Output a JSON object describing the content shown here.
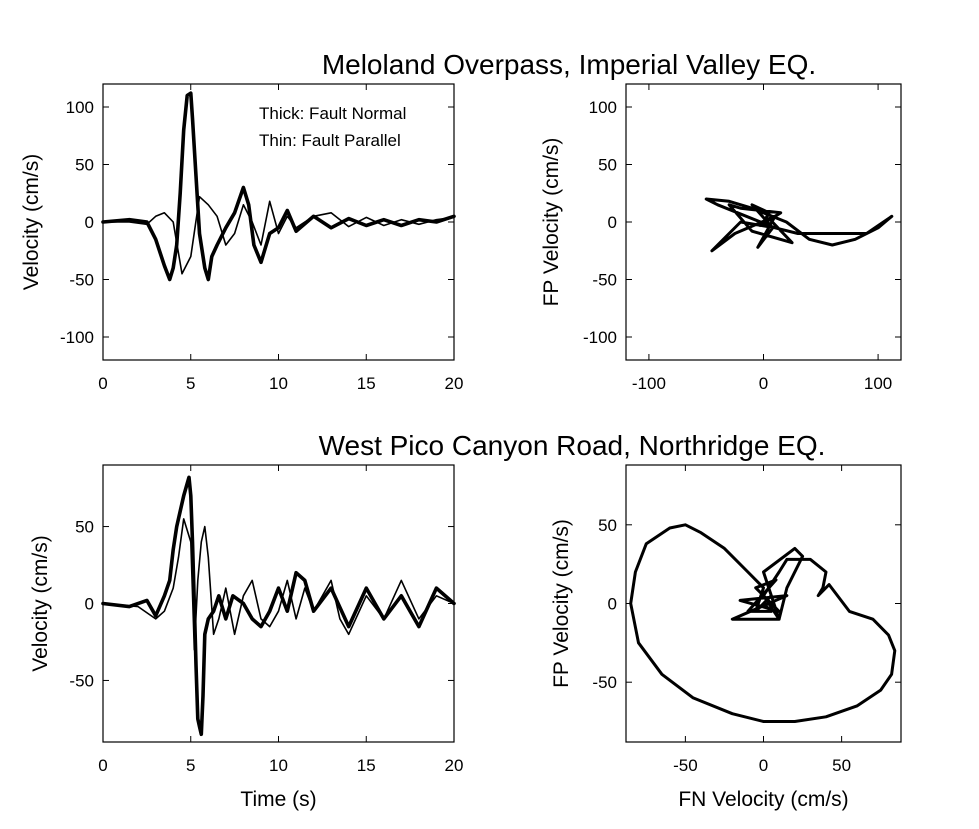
{
  "titles": {
    "top": "Meloland Overpass, Imperial Valley EQ.",
    "bottom": "West Pico Canyon Road, Northridge EQ."
  },
  "chart_data": [
    {
      "type": "line",
      "xlabel": "",
      "ylabel": "Velocity (cm/s)",
      "xlim": [
        0,
        20
      ],
      "ylim": [
        -120,
        120
      ],
      "xticks": [
        0,
        5,
        10,
        15,
        20
      ],
      "yticks": [
        -100,
        -50,
        0,
        50,
        100
      ],
      "legend": [
        "Thick: Fault Normal",
        "Thin: Fault Parallel"
      ],
      "series": [
        {
          "name": "Fault Normal",
          "x": [
            0,
            1.5,
            2.5,
            3,
            3.5,
            3.8,
            4,
            4.2,
            4.4,
            4.6,
            4.8,
            5,
            5.1,
            5.3,
            5.5,
            5.8,
            6,
            6.2,
            6.5,
            7,
            7.5,
            8,
            8.3,
            8.6,
            9,
            9.5,
            10,
            10.5,
            11,
            12,
            13,
            14,
            15,
            16,
            17,
            18,
            19,
            20
          ],
          "y": [
            0,
            2,
            0,
            -15,
            -38,
            -50,
            -40,
            -20,
            25,
            80,
            110,
            112,
            90,
            40,
            -10,
            -40,
            -50,
            -30,
            -20,
            -5,
            8,
            30,
            15,
            -20,
            -35,
            -10,
            -5,
            10,
            -8,
            5,
            -5,
            3,
            -3,
            2,
            -3,
            2,
            0,
            5
          ]
        },
        {
          "name": "Fault Parallel",
          "x": [
            0,
            1.5,
            2.5,
            3,
            3.5,
            4,
            4.5,
            5,
            5.5,
            6,
            6.5,
            7,
            7.5,
            8,
            8.5,
            9,
            9.5,
            10,
            10.5,
            11,
            12,
            13,
            14,
            15,
            16,
            17,
            18,
            19,
            20
          ],
          "y": [
            0,
            0,
            -2,
            5,
            8,
            0,
            -45,
            -30,
            22,
            15,
            5,
            -20,
            -10,
            15,
            0,
            -20,
            18,
            -10,
            5,
            -5,
            5,
            8,
            -4,
            4,
            -3,
            2,
            -2,
            2,
            4
          ]
        }
      ]
    },
    {
      "type": "line",
      "xlabel": "",
      "ylabel": "FP Velocity (cm/s)",
      "xlim": [
        -120,
        120
      ],
      "ylim": [
        -120,
        120
      ],
      "xticks": [
        -100,
        0,
        100
      ],
      "yticks": [
        -100,
        -50,
        0,
        50,
        100
      ],
      "series": [
        {
          "name": "",
          "x": [
            0,
            5,
            -10,
            8,
            -5,
            10,
            -25,
            -45,
            -20,
            10,
            -40,
            -50,
            -30,
            -10,
            20,
            40,
            60,
            80,
            100,
            112,
            90,
            60,
            30,
            10,
            -5,
            8,
            -3,
            15,
            -20,
            -30,
            -10,
            25,
            5,
            0
          ],
          "y": [
            0,
            8,
            15,
            -5,
            -22,
            5,
            -10,
            -25,
            0,
            -5,
            15,
            20,
            18,
            12,
            0,
            -15,
            -20,
            -15,
            -5,
            5,
            -10,
            -10,
            -10,
            -5,
            -2,
            4,
            -3,
            8,
            12,
            15,
            -8,
            -18,
            3,
            0
          ]
        }
      ]
    },
    {
      "type": "line",
      "xlabel": "Time (s)",
      "ylabel": "Velocity (cm/s)",
      "xlim": [
        0,
        20
      ],
      "ylim": [
        -90,
        90
      ],
      "xticks": [
        0,
        5,
        10,
        15,
        20
      ],
      "yticks": [
        -50,
        0,
        50
      ],
      "series": [
        {
          "name": "Fault Normal",
          "x": [
            0,
            1.5,
            2.5,
            3,
            3.5,
            3.8,
            4,
            4.2,
            4.4,
            4.6,
            4.8,
            4.9,
            5,
            5.1,
            5.2,
            5.3,
            5.4,
            5.5,
            5.6,
            5.7,
            5.8,
            6,
            6.3,
            6.6,
            7,
            7.4,
            8,
            8.5,
            9,
            9.5,
            10,
            10.5,
            11,
            11.5,
            12,
            13,
            14,
            15,
            16,
            17,
            18,
            19,
            20
          ],
          "y": [
            0,
            -2,
            2,
            -8,
            5,
            15,
            35,
            50,
            60,
            70,
            78,
            82,
            70,
            40,
            0,
            -40,
            -75,
            -80,
            -85,
            -60,
            -20,
            -10,
            -5,
            5,
            -10,
            5,
            0,
            -10,
            -15,
            -5,
            10,
            -5,
            20,
            15,
            -5,
            10,
            -15,
            10,
            -10,
            5,
            -15,
            10,
            0
          ]
        },
        {
          "name": "Fault Parallel",
          "x": [
            0,
            2,
            3,
            3.5,
            4,
            4.3,
            4.6,
            5,
            5.2,
            5.4,
            5.6,
            5.8,
            6,
            6.3,
            6.6,
            7,
            7.5,
            8,
            8.5,
            9,
            9.5,
            10,
            10.5,
            11,
            11.5,
            12,
            12.5,
            13,
            13.5,
            14,
            15,
            16,
            17,
            18,
            19,
            20
          ],
          "y": [
            0,
            -2,
            -10,
            -5,
            10,
            30,
            55,
            40,
            -30,
            15,
            40,
            50,
            30,
            -20,
            -10,
            10,
            -20,
            5,
            15,
            -10,
            -15,
            -5,
            15,
            -10,
            10,
            -5,
            5,
            15,
            -10,
            -20,
            5,
            -10,
            15,
            -10,
            5,
            0
          ]
        }
      ]
    },
    {
      "type": "line",
      "xlabel": "FN Velocity (cm/s)",
      "ylabel": "FP Velocity (cm/s)",
      "xlim": [
        -88,
        88
      ],
      "ylim": [
        -88,
        88
      ],
      "xticks": [
        -50,
        0,
        50
      ],
      "yticks": [
        -50,
        0,
        50
      ],
      "series": [
        {
          "name": "",
          "x": [
            0,
            5,
            -10,
            8,
            -5,
            10,
            -15,
            15,
            -20,
            10,
            0,
            20,
            25,
            15,
            10,
            0,
            10,
            15,
            30,
            40,
            38,
            35,
            42,
            55,
            70,
            80,
            84,
            82,
            75,
            60,
            40,
            20,
            0,
            -20,
            -45,
            -65,
            -80,
            -85,
            -82,
            -75,
            -60,
            -50,
            -40,
            -25,
            -10,
            0,
            -5,
            5,
            0
          ],
          "y": [
            0,
            -5,
            -5,
            15,
            10,
            -5,
            2,
            5,
            -10,
            -10,
            20,
            35,
            30,
            10,
            -10,
            5,
            20,
            28,
            28,
            20,
            10,
            5,
            12,
            -5,
            -10,
            -20,
            -30,
            -45,
            -55,
            -65,
            -72,
            -75,
            -75,
            -70,
            -60,
            -45,
            -25,
            0,
            20,
            38,
            48,
            50,
            45,
            35,
            20,
            10,
            -5,
            5,
            0
          ]
        }
      ]
    }
  ]
}
